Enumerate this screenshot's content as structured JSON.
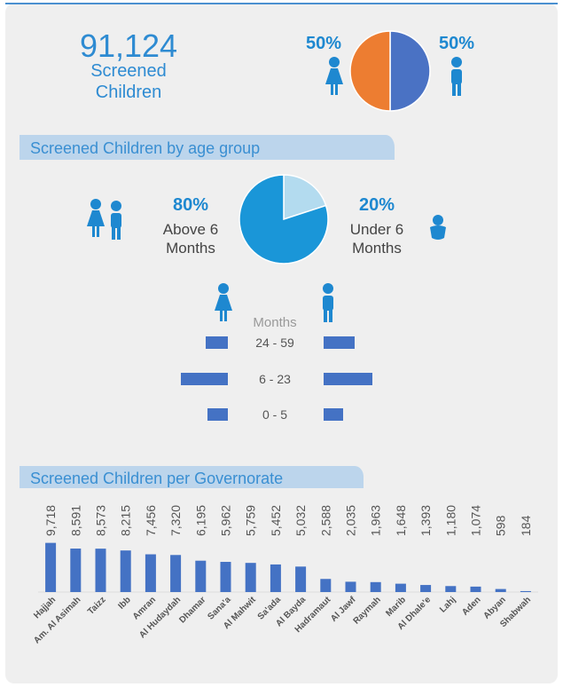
{
  "kpi": {
    "value": "91,124",
    "label": "Screened Children"
  },
  "chart_data": [
    {
      "type": "pie",
      "values": [
        50,
        50
      ],
      "value_labels": [
        "50%",
        "50%"
      ],
      "colors": [
        "#4a72c4",
        "#ed7d31"
      ]
    },
    {
      "type": "pie",
      "title": "Screened Children by age group",
      "categories": [
        "Under 6 Months",
        "Above 6 Months"
      ],
      "values": [
        20,
        80
      ],
      "value_labels": [
        "20%",
        "80%"
      ],
      "colors": [
        "#b3dbef",
        "#1a96d8"
      ]
    },
    {
      "type": "pyramid",
      "x_label": "Months",
      "categories": [
        "24 - 59",
        "6 - 23",
        "0 - 5"
      ],
      "xlim": [
        0,
        60
      ],
      "series": [
        {
          "color": "#4472c4",
          "values": [
            25,
            53,
            23
          ]
        },
        {
          "color": "#4472c4",
          "values": [
            35,
            55,
            22
          ]
        }
      ]
    },
    {
      "type": "bar",
      "title": "Screened Children per Governorate",
      "categories": [
        "Hajjah",
        "Am. Al Asimah",
        "Taizz",
        "Ibb",
        "Amran",
        "Al Hudaydah",
        "Dhamar",
        "Sana'a",
        "Al Mahwit",
        "Sa'ada",
        "Al Bayda",
        "Hadramaut",
        "Al Jawf",
        "Raymah",
        "Marib",
        "Al Dhale'e",
        "Lahj",
        "Aden",
        "Abyan",
        "Shabwah"
      ],
      "values": [
        9718,
        8591,
        8573,
        8215,
        7456,
        7320,
        6195,
        5962,
        5759,
        5452,
        5032,
        2588,
        2035,
        1963,
        1648,
        1393,
        1180,
        1074,
        598,
        184
      ],
      "value_labels": [
        "9,718",
        "8,591",
        "8,573",
        "8,215",
        "7,456",
        "7,320",
        "6,195",
        "5,962",
        "5,759",
        "5,452",
        "5,032",
        "2,588",
        "2,035",
        "1,963",
        "1,648",
        "1,393",
        "1,180",
        "1,074",
        "598",
        "184"
      ],
      "ylim": [
        0,
        10000
      ],
      "color": "#4472c4"
    }
  ]
}
